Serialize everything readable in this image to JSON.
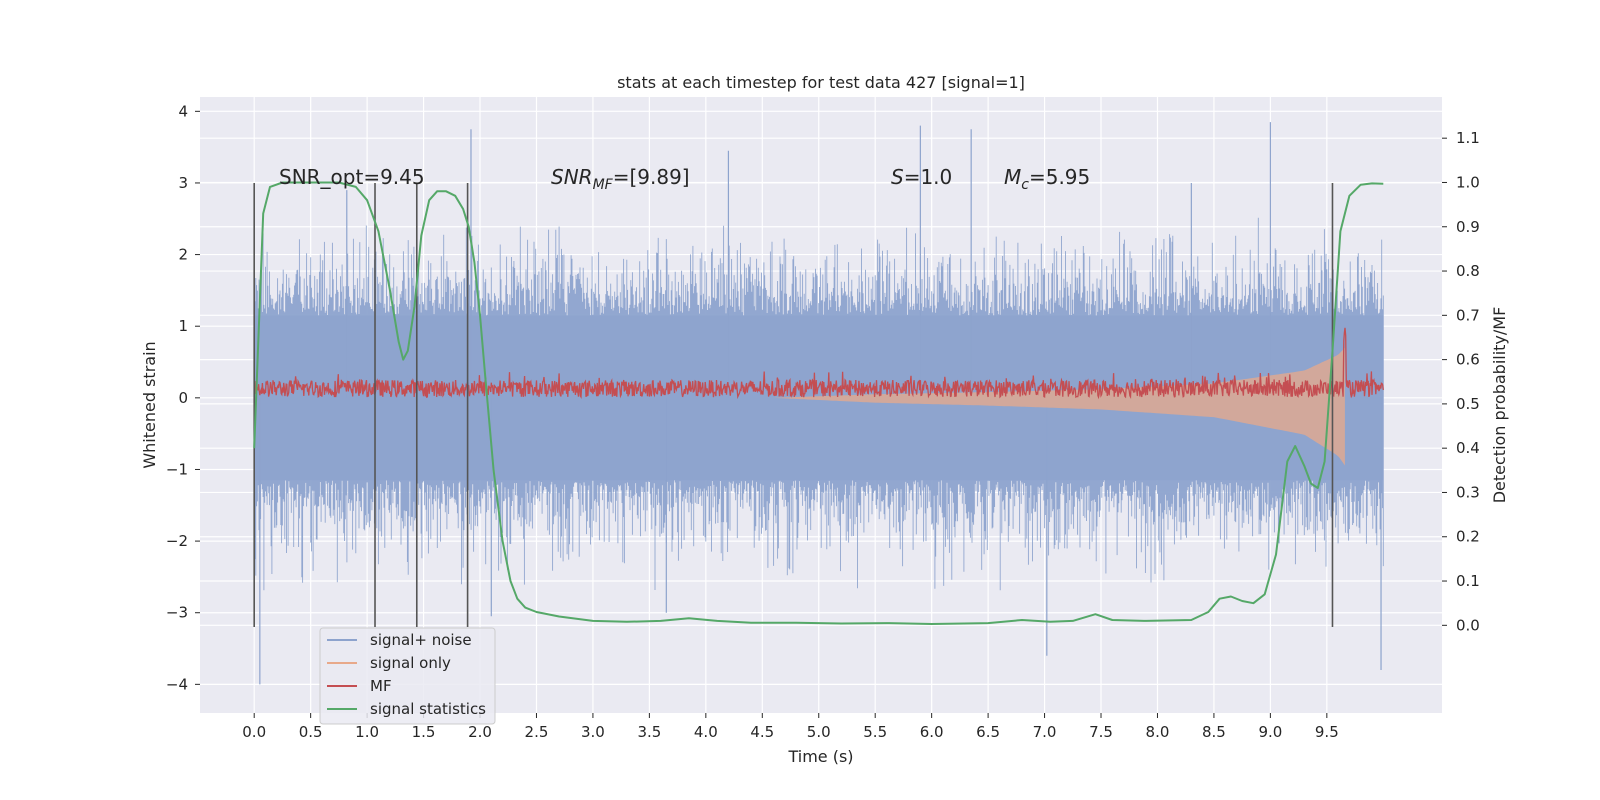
{
  "chart_data": {
    "type": "line",
    "title": "stats at each timestep for test data 427 [signal=1]",
    "xlabel": "Time (s)",
    "ylabel_left": "Whitened strain",
    "ylabel_right": "Detection probability/MF",
    "xlim": [
      -0.48,
      10.52
    ],
    "ylim_left": [
      -4.4,
      4.2
    ],
    "ylim_right": [
      -0.198,
      1.193
    ],
    "x_ticks": [
      "0.0",
      "0.5",
      "1.0",
      "1.5",
      "2.0",
      "2.5",
      "3.0",
      "3.5",
      "4.0",
      "4.5",
      "5.0",
      "5.5",
      "6.0",
      "6.5",
      "7.0",
      "7.5",
      "8.0",
      "8.5",
      "9.0",
      "9.5"
    ],
    "x_tick_values": [
      0,
      0.5,
      1,
      1.5,
      2,
      2.5,
      3,
      3.5,
      4,
      4.5,
      5,
      5.5,
      6,
      6.5,
      7,
      7.5,
      8,
      8.5,
      9,
      9.5
    ],
    "y_left_ticks": [
      "4",
      "3",
      "2",
      "1",
      "0",
      "−1",
      "−2",
      "−3",
      "−4"
    ],
    "y_left_tick_values": [
      4,
      3,
      2,
      1,
      0,
      -1,
      -2,
      -3,
      -4
    ],
    "y_right_ticks": [
      "1.1",
      "1.0",
      "0.9",
      "0.8",
      "0.7",
      "0.6",
      "0.5",
      "0.4",
      "0.3",
      "0.2",
      "0.1",
      "0.0"
    ],
    "y_right_tick_values": [
      1.1,
      1.0,
      0.9,
      0.8,
      0.7,
      0.6,
      0.5,
      0.4,
      0.3,
      0.2,
      0.1,
      0.0
    ],
    "annotations": {
      "snr_opt": "SNR_opt=9.45",
      "snr_mf_base": "SNR",
      "snr_mf_sub": "MF",
      "snr_mf_value": "=[9.89]",
      "s_label": "S",
      "s_value": "=1.0",
      "mc_base": "M",
      "mc_sub": "c",
      "mc_value": "=5.95"
    },
    "legend": {
      "position": "lower-left",
      "entries": [
        {
          "name": "signal+ noise",
          "color": "#8da3cd"
        },
        {
          "name": "signal only",
          "color": "#e8a98a"
        },
        {
          "name": "MF",
          "color": "#c44e52"
        },
        {
          "name": "signal statistics",
          "color": "#55a868"
        }
      ]
    },
    "vertical_markers": [
      0.0,
      1.07,
      1.44,
      1.89,
      9.55
    ],
    "vertical_marker_range": [
      -3.2,
      3.0
    ],
    "series": [
      {
        "name": "signal+ noise",
        "axis": "left",
        "style": "dense-noise",
        "x_range": [
          0,
          10
        ],
        "band_core": [
          -1.15,
          1.15
        ],
        "typical_extent": [
          -2.2,
          2.1
        ],
        "spikes": [
          {
            "x": 0.05,
            "y": -4.0
          },
          {
            "x": 0.82,
            "y": 2.9
          },
          {
            "x": 1.92,
            "y": 3.75
          },
          {
            "x": 2.1,
            "y": -3.05
          },
          {
            "x": 3.65,
            "y": -3.0
          },
          {
            "x": 4.2,
            "y": 3.45
          },
          {
            "x": 5.9,
            "y": 3.8
          },
          {
            "x": 6.35,
            "y": 3.75
          },
          {
            "x": 7.02,
            "y": -3.6
          },
          {
            "x": 8.3,
            "y": 3.0
          },
          {
            "x": 9.0,
            "y": 3.85
          },
          {
            "x": 9.98,
            "y": -3.8
          }
        ]
      },
      {
        "name": "signal only",
        "axis": "left",
        "style": "chirp-envelope",
        "amplitude": [
          {
            "x": 4.6,
            "y": 0.0
          },
          {
            "x": 5.5,
            "y": 0.05
          },
          {
            "x": 6.5,
            "y": 0.08
          },
          {
            "x": 7.5,
            "y": 0.12
          },
          {
            "x": 8.5,
            "y": 0.2
          },
          {
            "x": 9.3,
            "y": 0.38
          },
          {
            "x": 9.6,
            "y": 0.6
          },
          {
            "x": 9.66,
            "y": 0.7
          }
        ]
      },
      {
        "name": "MF",
        "axis": "left",
        "style": "noisy-line",
        "x_range": [
          0,
          10
        ],
        "mean": 0.13,
        "spread": 0.12,
        "peak": {
          "x": 9.66,
          "y": 1.0
        }
      },
      {
        "name": "signal statistics",
        "axis": "right",
        "points": [
          [
            0.0,
            0.4
          ],
          [
            0.03,
            0.6
          ],
          [
            0.08,
            0.93
          ],
          [
            0.14,
            0.99
          ],
          [
            0.25,
            1.0
          ],
          [
            0.5,
            1.0
          ],
          [
            0.75,
            1.0
          ],
          [
            0.9,
            0.99
          ],
          [
            1.0,
            0.96
          ],
          [
            1.1,
            0.89
          ],
          [
            1.2,
            0.76
          ],
          [
            1.28,
            0.64
          ],
          [
            1.32,
            0.6
          ],
          [
            1.36,
            0.62
          ],
          [
            1.42,
            0.72
          ],
          [
            1.48,
            0.88
          ],
          [
            1.55,
            0.96
          ],
          [
            1.62,
            0.98
          ],
          [
            1.7,
            0.98
          ],
          [
            1.78,
            0.97
          ],
          [
            1.85,
            0.94
          ],
          [
            1.9,
            0.9
          ],
          [
            1.95,
            0.82
          ],
          [
            2.0,
            0.7
          ],
          [
            2.05,
            0.55
          ],
          [
            2.12,
            0.35
          ],
          [
            2.2,
            0.19
          ],
          [
            2.27,
            0.1
          ],
          [
            2.33,
            0.06
          ],
          [
            2.4,
            0.04
          ],
          [
            2.5,
            0.03
          ],
          [
            2.7,
            0.02
          ],
          [
            3.0,
            0.01
          ],
          [
            3.3,
            0.008
          ],
          [
            3.6,
            0.01
          ],
          [
            3.85,
            0.016
          ],
          [
            4.1,
            0.01
          ],
          [
            4.4,
            0.006
          ],
          [
            4.8,
            0.006
          ],
          [
            5.2,
            0.004
          ],
          [
            5.6,
            0.005
          ],
          [
            6.0,
            0.003
          ],
          [
            6.5,
            0.005
          ],
          [
            6.8,
            0.012
          ],
          [
            7.05,
            0.008
          ],
          [
            7.25,
            0.01
          ],
          [
            7.45,
            0.025
          ],
          [
            7.6,
            0.012
          ],
          [
            7.9,
            0.01
          ],
          [
            8.3,
            0.012
          ],
          [
            8.45,
            0.03
          ],
          [
            8.55,
            0.06
          ],
          [
            8.65,
            0.065
          ],
          [
            8.75,
            0.055
          ],
          [
            8.85,
            0.05
          ],
          [
            8.95,
            0.07
          ],
          [
            9.05,
            0.16
          ],
          [
            9.15,
            0.37
          ],
          [
            9.22,
            0.405
          ],
          [
            9.3,
            0.36
          ],
          [
            9.36,
            0.32
          ],
          [
            9.42,
            0.31
          ],
          [
            9.48,
            0.37
          ],
          [
            9.55,
            0.62
          ],
          [
            9.62,
            0.89
          ],
          [
            9.7,
            0.97
          ],
          [
            9.8,
            0.995
          ],
          [
            9.9,
            0.998
          ],
          [
            10.0,
            0.997
          ]
        ]
      }
    ]
  }
}
